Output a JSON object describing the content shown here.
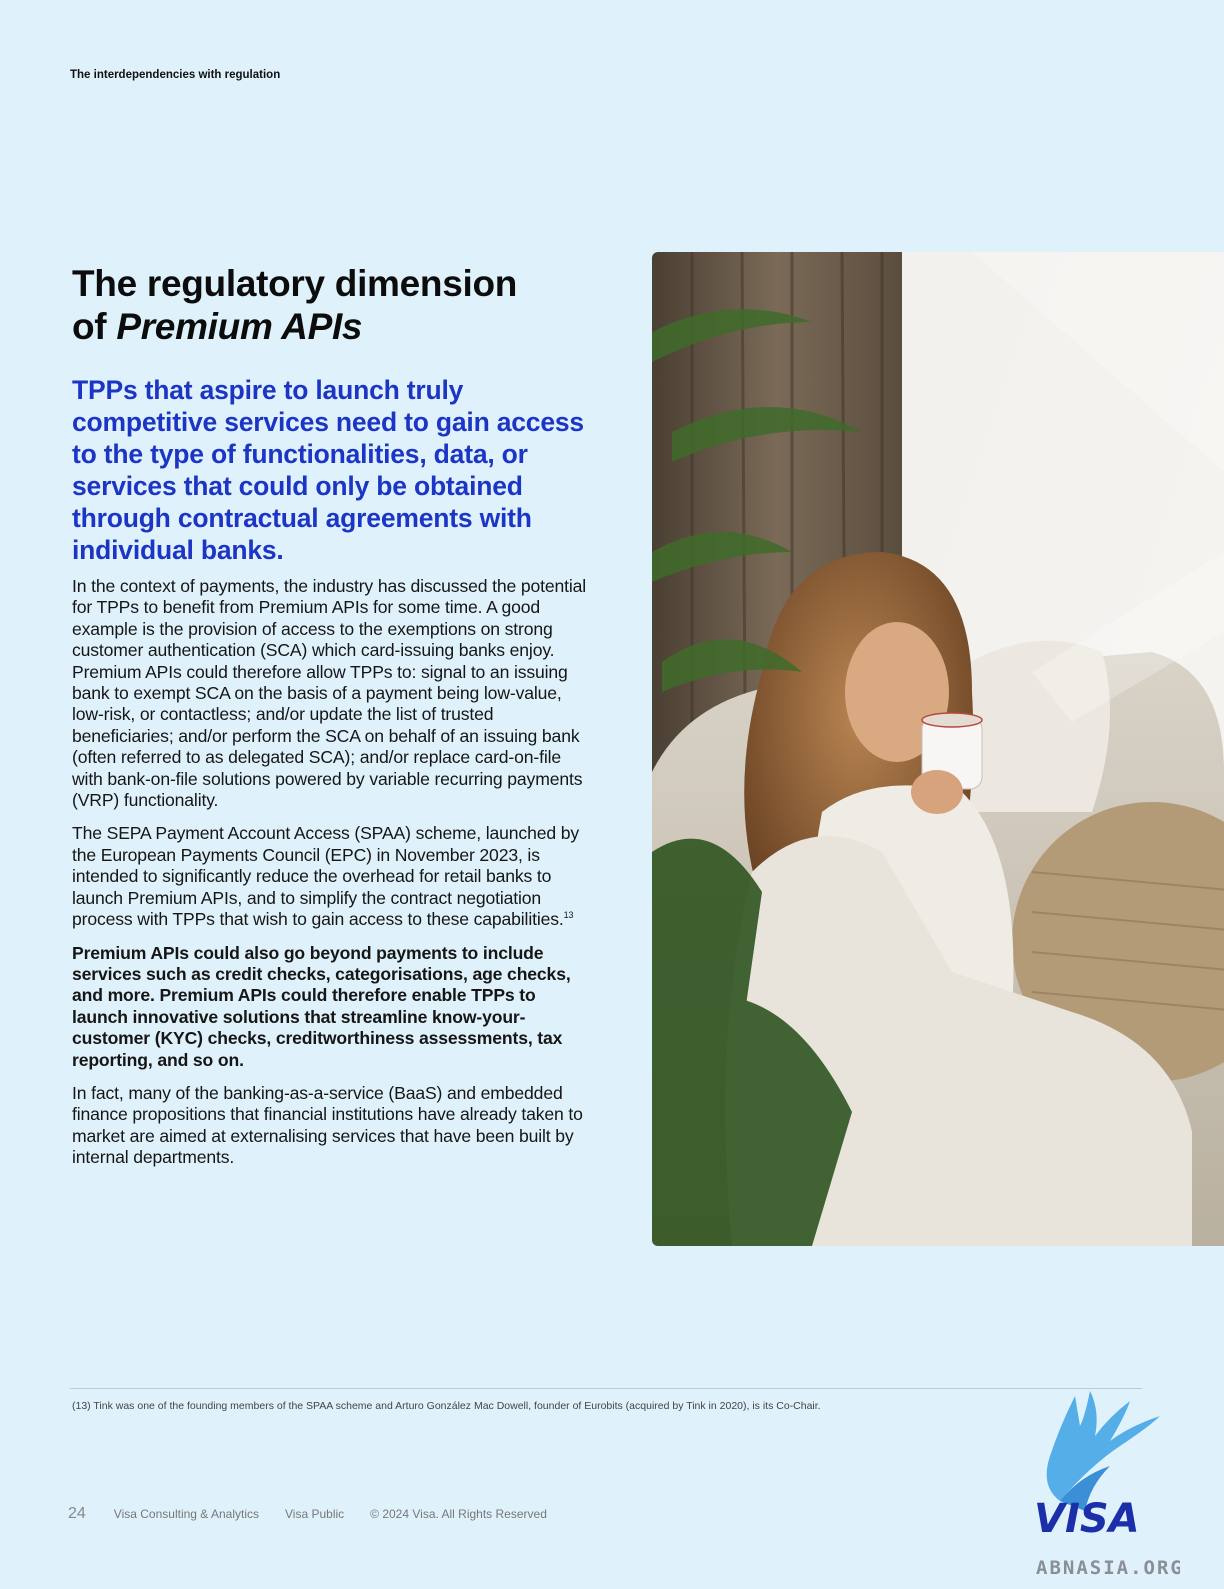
{
  "header": {
    "section_label": "The interdependencies with regulation"
  },
  "main": {
    "title_line1": "The regulatory dimension",
    "title_of": "of ",
    "title_emphasis": "Premium APIs",
    "lede": "TPPs that aspire to launch truly competitive services need to gain access to the type of functionalities, data, or services that could only be obtained through contractual agreements with individual banks.",
    "paragraph1": "In the context of payments, the industry has discussed the potential for TPPs to benefit from Premium APIs for some time. A good example is the provision of access to the exemptions on strong customer authentication (SCA) which card-issuing banks enjoy. Premium APIs could therefore allow TPPs to: signal to an issuing bank to exempt SCA on the basis of a payment being low-value, low-risk, or contactless; and/or update the list of trusted beneficiaries; and/or perform the SCA on behalf of an issuing bank (often referred to as delegated SCA); and/or replace card-on-file with bank-on-file solutions powered by variable recurring payments (VRP) functionality.",
    "paragraph2": "The SEPA Payment Account Access (SPAA) scheme, launched by the European Payments Council (EPC) in November 2023, is intended to significantly reduce the overhead for retail banks to launch Premium APIs, and to simplify the contract negotiation process with TPPs that wish to gain access to these capabilities.",
    "paragraph2_footnote_ref": "13",
    "paragraph3": "Premium APIs could also go beyond payments to include services such as credit checks, categorisations, age checks, and more. Premium APIs could therefore enable TPPs to launch innovative solutions that streamline know-your-customer (KYC) checks, creditworthiness assessments, tax reporting, and so on.",
    "paragraph4": "In fact, many of the banking-as-a-service (BaaS) and embedded finance propositions that financial institutions have already taken to market are aimed at externalising services that have been built by internal departments."
  },
  "footnote": {
    "text": "(13)  Tink was one of the founding members of the SPAA scheme and Arturo González Mac Dowell, founder of Eurobits (acquired by Tink in 2020), is its Co-Chair."
  },
  "footer": {
    "page_number": "24",
    "org": "Visa Consulting & Analytics",
    "classification": "Visa Public",
    "copyright": "© 2024 Visa. All Rights Reserved"
  },
  "watermark": {
    "brand": "VISA",
    "site": "ABNASIA.ORG"
  },
  "colors": {
    "background": "#dff2fc",
    "accent_blue": "#1d35c4",
    "text": "#111111"
  }
}
